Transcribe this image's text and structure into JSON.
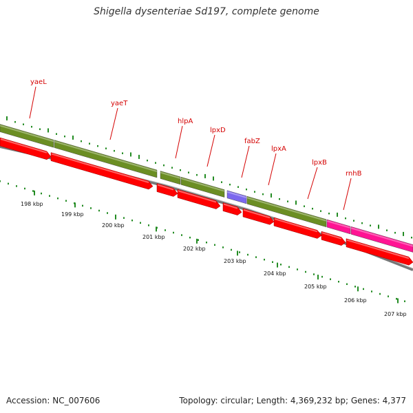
{
  "title": "Shigella dysenteriae Sd197, complete genome",
  "footer": {
    "accession": "Accession: NC_007606",
    "summary": "Topology: circular; Length: 4,369,232 bp; Genes: 4,377"
  },
  "gene_labels": [
    "yaeL",
    "yaeT",
    "hlpA",
    "lpxD",
    "fabZ",
    "lpxA",
    "lpxB",
    "rnhB"
  ],
  "scale_labels": [
    "198 kbp",
    "199 kbp",
    "200 kbp",
    "201 kbp",
    "202 kbp",
    "203 kbp",
    "204 kbp",
    "205 kbp",
    "206 kbp",
    "207 kbp"
  ],
  "colors": {
    "gene": "#6b8e23",
    "cds": "#ff0000",
    "purple_segment": "#7b68ee",
    "magenta_segment": "#ff1493",
    "backbone": "#777777",
    "ticks": "#228b22",
    "labels": "#d40000"
  }
}
